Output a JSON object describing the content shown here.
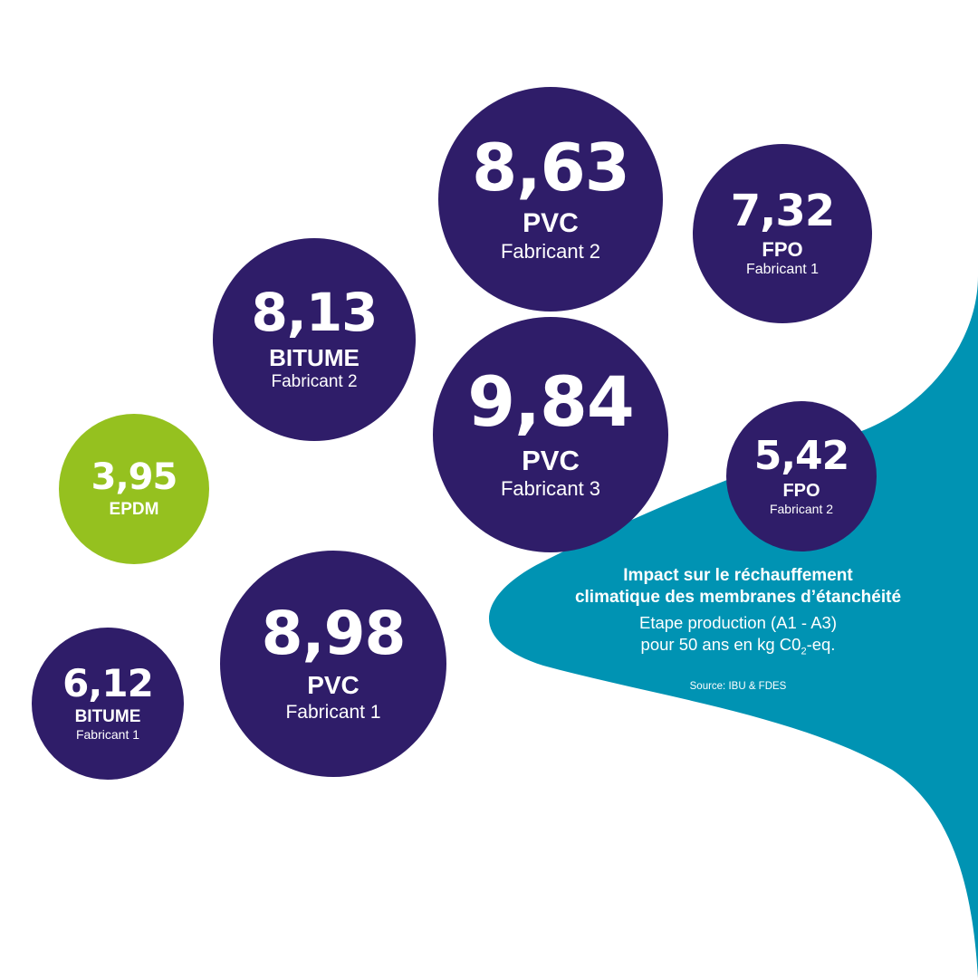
{
  "colors": {
    "bubble": "#2f1d69",
    "highlight": "#95c11f",
    "teal": "#0093b3",
    "text": "#ffffff"
  },
  "info": {
    "title_line1": "Impact sur le réchauffement",
    "title_line2": "climatique des membranes d’étanchéité",
    "unit_line1": "Etape production (A1 - A3)",
    "unit_line2_prefix": "pour 50 ans en kg  C0",
    "unit_line2_sub": "2",
    "unit_line2_suffix": "-eq.",
    "source": "Source: IBU & FDES"
  },
  "chart_data": {
    "type": "bubble",
    "title": "Impact sur le réchauffement climatique des membranes d’étanchéité",
    "subtitle": "Etape production (A1 - A3) pour 50 ans en kg CO2-eq.",
    "source": "Source: IBU & FDES",
    "points": [
      {
        "value_label": "8,63",
        "value": 8.63,
        "material": "PVC",
        "manufacturer": "Fabricant 2"
      },
      {
        "value_label": "7,32",
        "value": 7.32,
        "material": "FPO",
        "manufacturer": "Fabricant 1"
      },
      {
        "value_label": "8,13",
        "value": 8.13,
        "material": "BITUME",
        "manufacturer": "Fabricant 2"
      },
      {
        "value_label": "9,84",
        "value": 9.84,
        "material": "PVC",
        "manufacturer": "Fabricant 3"
      },
      {
        "value_label": "5,42",
        "value": 5.42,
        "material": "FPO",
        "manufacturer": "Fabricant 2"
      },
      {
        "value_label": "3,95",
        "value": 3.95,
        "material": "EPDM",
        "manufacturer": "",
        "highlight": true
      },
      {
        "value_label": "8,98",
        "value": 8.98,
        "material": "PVC",
        "manufacturer": "Fabricant 1"
      },
      {
        "value_label": "6,12",
        "value": 6.12,
        "material": "BITUME",
        "manufacturer": "Fabricant 1"
      }
    ]
  }
}
